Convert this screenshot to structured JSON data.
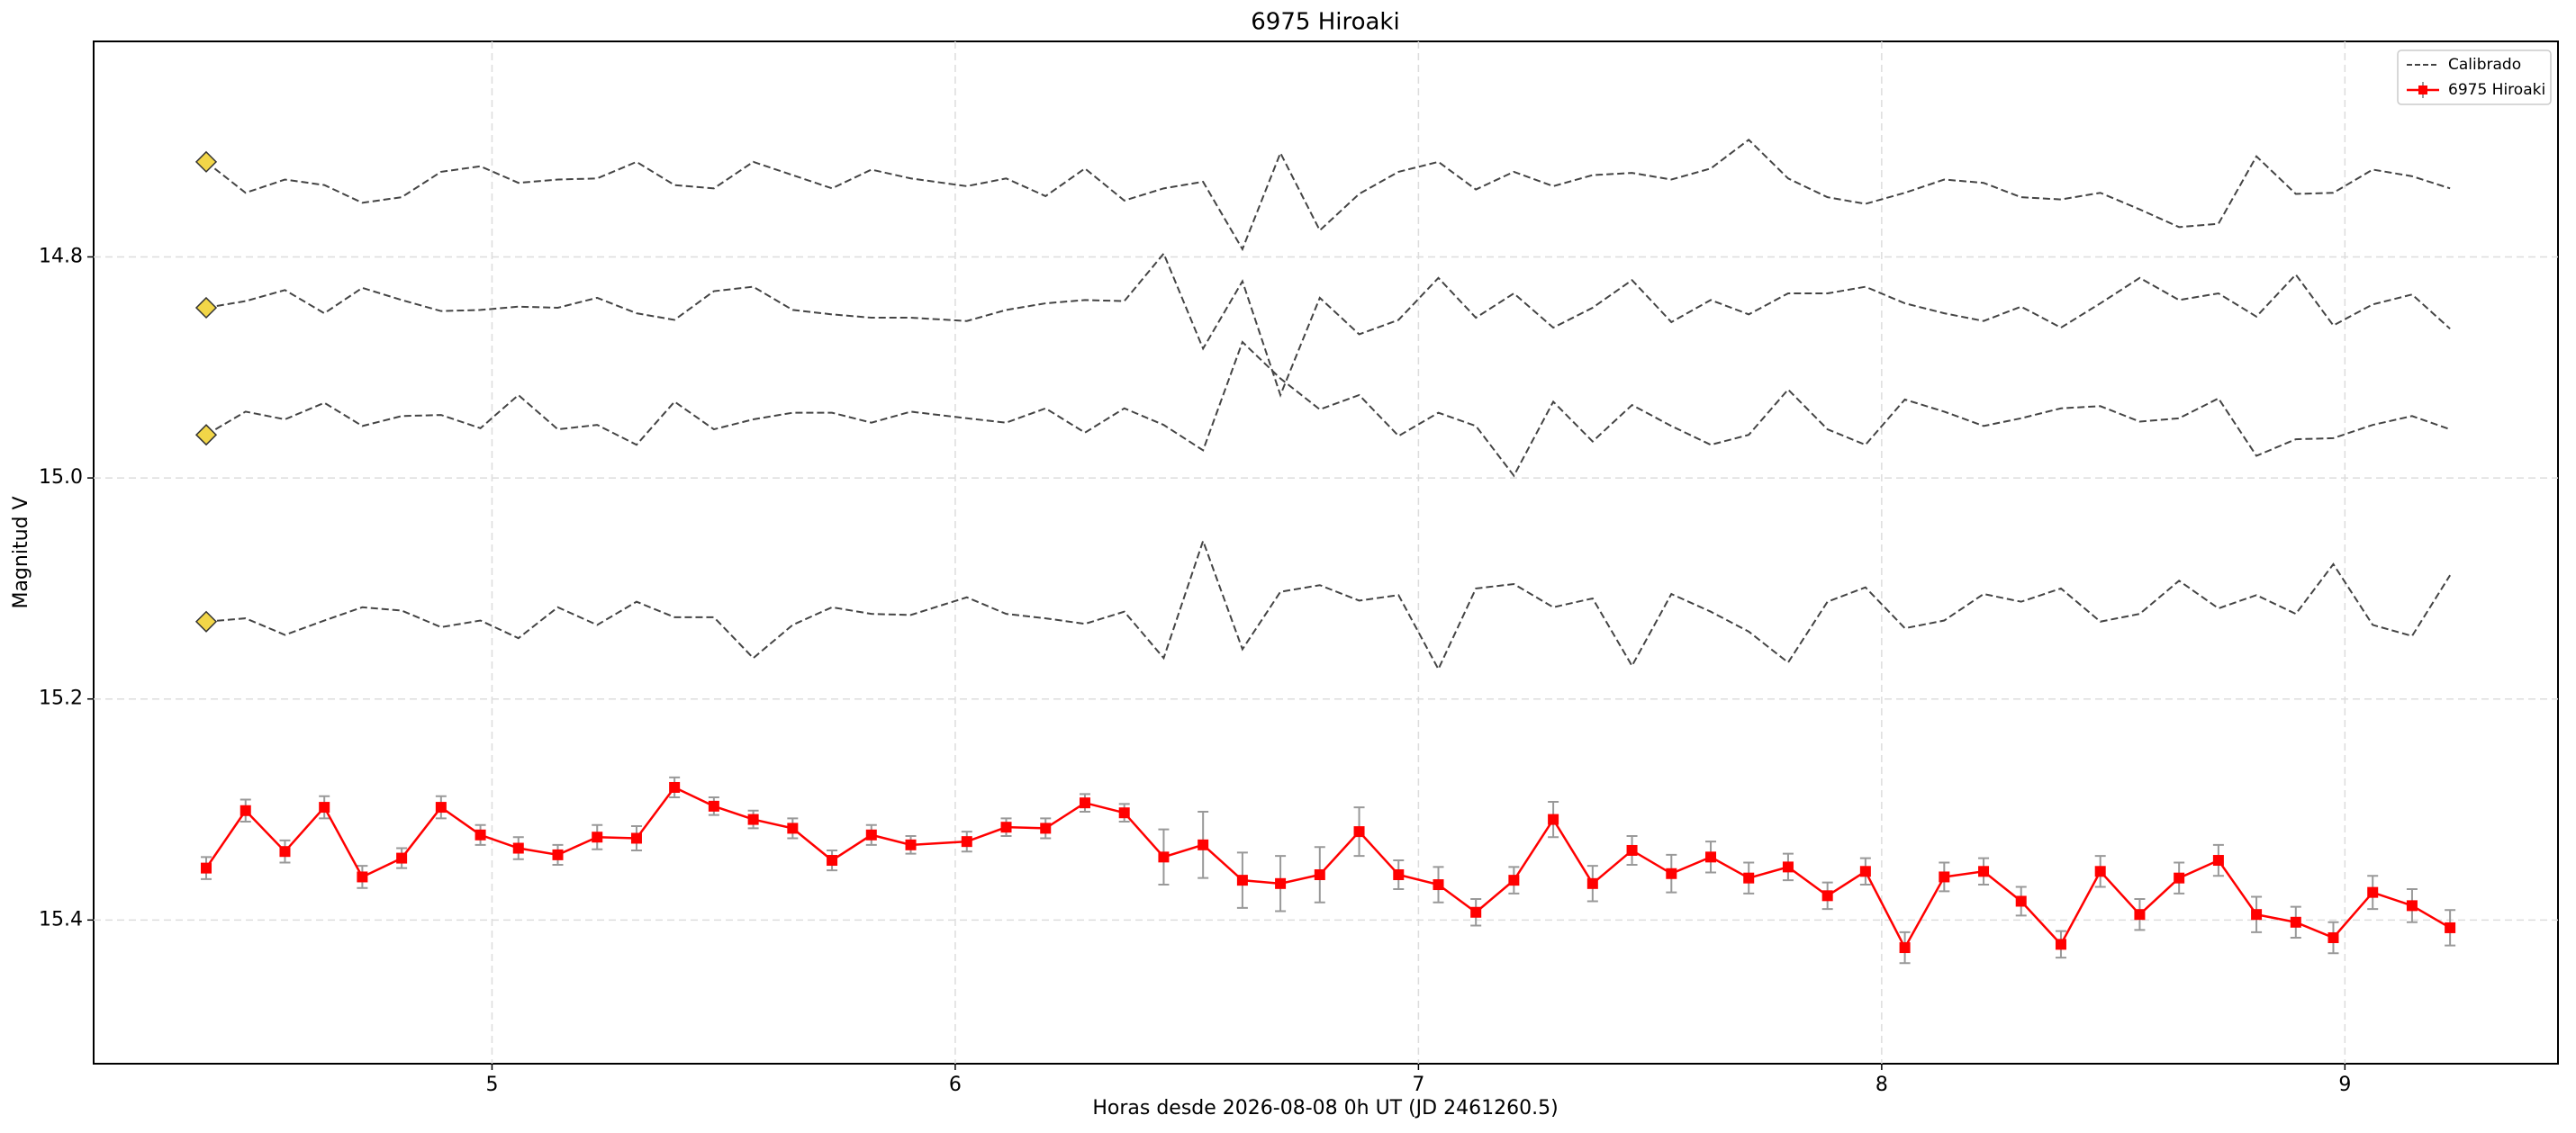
{
  "chart_data": {
    "type": "line",
    "title": "6975 Hiroaki",
    "xlabel": "Horas desde 2026-08-08 0h UT (JD 2461260.5)",
    "ylabel": "Magnitud V",
    "x": [
      4.383,
      4.468,
      4.553,
      4.638,
      4.72,
      4.805,
      4.89,
      4.975,
      5.057,
      5.142,
      5.227,
      5.312,
      5.394,
      5.479,
      5.564,
      5.649,
      5.734,
      5.819,
      5.904,
      6.025,
      6.11,
      6.195,
      6.28,
      6.365,
      6.45,
      6.535,
      6.62,
      6.702,
      6.787,
      6.872,
      6.957,
      7.043,
      7.124,
      7.206,
      7.291,
      7.376,
      7.461,
      7.546,
      7.631,
      7.713,
      7.798,
      7.883,
      7.965,
      8.05,
      8.135,
      8.22,
      8.301,
      8.387,
      8.472,
      8.557,
      8.642,
      8.727,
      8.809,
      8.894,
      8.975,
      9.06,
      9.145,
      9.227
    ],
    "calibrated": {
      "name": "Calibrado",
      "color": "#444444",
      "marker_color": "#f2d648",
      "lines": [
        [
          14.714,
          14.742,
          14.73,
          14.735,
          14.751,
          14.746,
          14.723,
          14.718,
          14.733,
          14.73,
          14.729,
          14.714,
          14.735,
          14.738,
          14.714,
          14.726,
          14.738,
          14.721,
          14.729,
          14.736,
          14.729,
          14.745,
          14.72,
          14.749,
          14.738,
          14.732,
          14.793,
          14.706,
          14.776,
          14.743,
          14.723,
          14.714,
          14.739,
          14.723,
          14.736,
          14.726,
          14.724,
          14.73,
          14.72,
          14.694,
          14.729,
          14.746,
          14.752,
          14.742,
          14.73,
          14.733,
          14.746,
          14.748,
          14.742,
          14.757,
          14.773,
          14.77,
          14.709,
          14.743,
          14.742,
          14.721,
          14.727,
          14.738
        ],
        [
          14.846,
          14.84,
          14.83,
          14.851,
          14.828,
          14.839,
          14.849,
          14.848,
          14.845,
          14.846,
          14.837,
          14.851,
          14.857,
          14.831,
          14.827,
          14.848,
          14.852,
          14.855,
          14.855,
          14.858,
          14.848,
          14.842,
          14.839,
          14.84,
          14.797,
          14.883,
          14.822,
          14.925,
          14.837,
          14.87,
          14.857,
          14.819,
          14.855,
          14.833,
          14.864,
          14.846,
          14.821,
          14.859,
          14.839,
          14.852,
          14.833,
          14.833,
          14.827,
          14.842,
          14.851,
          14.858,
          14.845,
          14.864,
          14.842,
          14.819,
          14.839,
          14.833,
          14.854,
          14.816,
          14.862,
          14.843,
          14.834,
          14.865
        ],
        [
          14.961,
          14.94,
          14.947,
          14.932,
          14.953,
          14.944,
          14.943,
          14.955,
          14.925,
          14.956,
          14.952,
          14.97,
          14.931,
          14.956,
          14.947,
          14.941,
          14.941,
          14.95,
          14.94,
          14.946,
          14.95,
          14.937,
          14.959,
          14.937,
          14.952,
          14.975,
          14.877,
          14.91,
          14.938,
          14.925,
          14.962,
          14.941,
          14.953,
          14.998,
          14.931,
          14.967,
          14.934,
          14.953,
          14.97,
          14.961,
          14.92,
          14.956,
          14.97,
          14.929,
          14.94,
          14.953,
          14.946,
          14.937,
          14.935,
          14.949,
          14.946,
          14.928,
          14.98,
          14.965,
          14.964,
          14.952,
          14.944,
          14.956
        ],
        [
          15.13,
          15.127,
          15.142,
          15.129,
          15.117,
          15.12,
          15.135,
          15.129,
          15.145,
          15.117,
          15.133,
          15.112,
          15.126,
          15.126,
          15.163,
          15.133,
          15.117,
          15.123,
          15.124,
          15.108,
          15.123,
          15.127,
          15.132,
          15.121,
          15.163,
          15.057,
          15.155,
          15.103,
          15.097,
          15.111,
          15.106,
          15.173,
          15.1,
          15.096,
          15.117,
          15.109,
          15.17,
          15.105,
          15.121,
          15.139,
          15.167,
          15.112,
          15.099,
          15.136,
          15.129,
          15.105,
          15.112,
          15.1,
          15.13,
          15.123,
          15.093,
          15.118,
          15.106,
          15.123,
          15.078,
          15.133,
          15.143,
          15.088
        ]
      ]
    },
    "series": [
      {
        "name": "6975 Hiroaki",
        "color": "#ff0000",
        "values": [
          15.353,
          15.301,
          15.338,
          15.298,
          15.361,
          15.344,
          15.298,
          15.323,
          15.335,
          15.341,
          15.325,
          15.326,
          15.28,
          15.297,
          15.309,
          15.317,
          15.346,
          15.323,
          15.332,
          15.329,
          15.316,
          15.317,
          15.294,
          15.303,
          15.343,
          15.332,
          15.364,
          15.367,
          15.359,
          15.32,
          15.359,
          15.368,
          15.393,
          15.364,
          15.309,
          15.367,
          15.337,
          15.358,
          15.343,
          15.362,
          15.352,
          15.378,
          15.356,
          15.425,
          15.361,
          15.356,
          15.383,
          15.422,
          15.356,
          15.395,
          15.362,
          15.346,
          15.395,
          15.402,
          15.416,
          15.375,
          15.387,
          15.407
        ],
        "errors": [
          0.01,
          0.01,
          0.01,
          0.01,
          0.01,
          0.009,
          0.01,
          0.009,
          0.01,
          0.009,
          0.011,
          0.011,
          0.009,
          0.008,
          0.008,
          0.009,
          0.009,
          0.009,
          0.008,
          0.009,
          0.008,
          0.009,
          0.008,
          0.008,
          0.025,
          0.03,
          0.025,
          0.025,
          0.025,
          0.022,
          0.013,
          0.016,
          0.012,
          0.012,
          0.016,
          0.016,
          0.013,
          0.017,
          0.014,
          0.014,
          0.012,
          0.012,
          0.012,
          0.014,
          0.013,
          0.012,
          0.013,
          0.012,
          0.014,
          0.014,
          0.014,
          0.014,
          0.016,
          0.014,
          0.014,
          0.015,
          0.015,
          0.016
        ]
      }
    ],
    "xlim": [
      4.14,
      9.46
    ],
    "ylim": [
      15.53,
      14.605
    ],
    "xticks": [
      5,
      6,
      7,
      8,
      9
    ],
    "yticks": [
      14.8,
      {
        "value": 15,
        "label": "15.0"
      },
      15.2,
      15.4
    ],
    "grid": true,
    "legend": "upper right"
  }
}
